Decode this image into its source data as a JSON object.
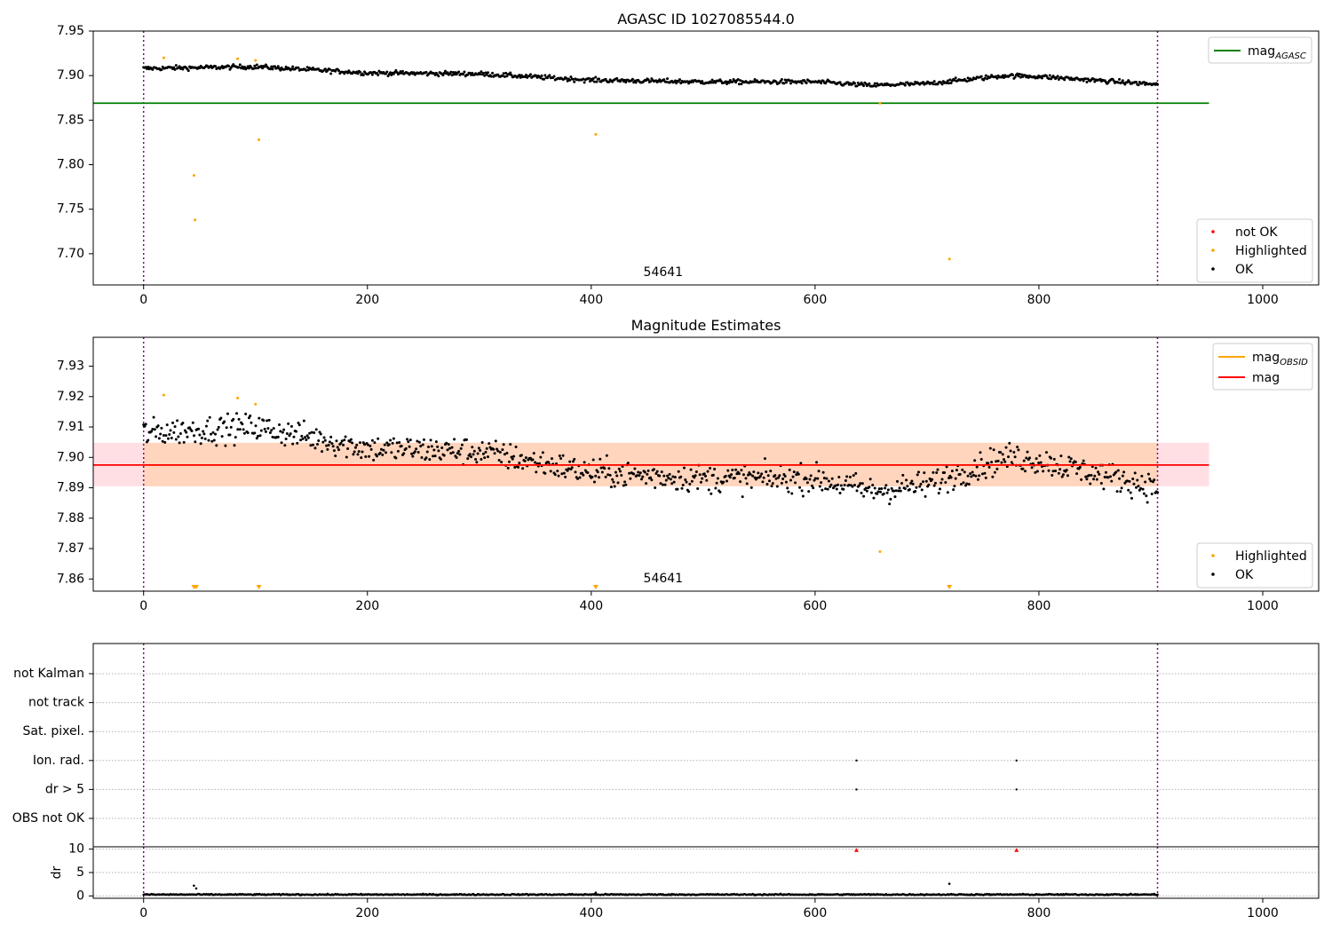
{
  "colors": {
    "ok": "#000000",
    "highlighted": "#ffa500",
    "not_ok": "#ff0000",
    "mag_agasc": "#008000",
    "mag_obsid": "#ffa500",
    "mag": "#ff0000",
    "obsid_line": "#800080",
    "band_obsid": "#ffd9bf",
    "band_mag": "#ffd0d8"
  },
  "chart_data": [
    {
      "type": "scatter",
      "title": "AGASC ID 1027085544.0",
      "xlim": [
        -45,
        1050
      ],
      "ylim": [
        7.665,
        7.95
      ],
      "xticks": [
        0,
        200,
        400,
        600,
        800,
        1000
      ],
      "yticks": [
        "7.70",
        "7.75",
        "7.80",
        "7.85",
        "7.90",
        "7.95"
      ],
      "ytick_values": [
        7.7,
        7.75,
        7.8,
        7.85,
        7.9,
        7.95
      ],
      "obsid_lines_x": [
        0,
        906
      ],
      "obsid_label": "54641",
      "obsid_label_x": 450,
      "hlines": [
        {
          "name": "mag",
          "sub": "AGASC",
          "y": 7.869,
          "x0": -45,
          "x1": 952
        }
      ],
      "legend_lines": [
        {
          "name": "mag",
          "sub": "AGASC",
          "color": "#008000"
        }
      ],
      "legend_points": [
        "not OK",
        "Highlighted",
        "OK"
      ],
      "ok_trend": {
        "n": 905,
        "x0": 0,
        "x1": 906,
        "knots_x": [
          0,
          100,
          200,
          300,
          400,
          500,
          600,
          650,
          700,
          770,
          800,
          906
        ],
        "knots_y": [
          7.908,
          7.91,
          7.903,
          7.902,
          7.895,
          7.893,
          7.893,
          7.889,
          7.891,
          7.9,
          7.899,
          7.89
        ],
        "noise": 0.0025
      },
      "highlighted_points": [
        [
          18,
          7.92
        ],
        [
          84,
          7.919
        ],
        [
          100,
          7.917
        ],
        [
          45,
          7.788
        ],
        [
          46,
          7.738
        ],
        [
          103,
          7.828
        ],
        [
          404,
          7.834
        ],
        [
          658,
          7.869
        ],
        [
          720,
          7.694
        ]
      ],
      "not_ok_points": []
    },
    {
      "type": "scatter",
      "title": "Magnitude Estimates",
      "xlim": [
        -45,
        1050
      ],
      "ylim": [
        7.856,
        7.9395
      ],
      "xticks": [
        0,
        200,
        400,
        600,
        800,
        1000
      ],
      "yticks": [
        "7.86",
        "7.87",
        "7.88",
        "7.89",
        "7.90",
        "7.91",
        "7.92",
        "7.93"
      ],
      "ytick_values": [
        7.86,
        7.87,
        7.88,
        7.89,
        7.9,
        7.91,
        7.92,
        7.93
      ],
      "obsid_lines_x": [
        0,
        906
      ],
      "obsid_label": "54641",
      "obsid_label_x": 450,
      "bands": [
        {
          "y0": 7.8905,
          "y1": 7.9048,
          "x0": -45,
          "x1": 952,
          "color": "#ffdfe4"
        },
        {
          "y0": 7.8905,
          "y1": 7.9048,
          "x0": 0,
          "x1": 906,
          "color": "#ffd5bd"
        }
      ],
      "hlines": [
        {
          "name": "mag",
          "sub": "OBSID",
          "y": 7.8975,
          "x0": 0,
          "x1": 906,
          "color": "#ffa500"
        },
        {
          "name": "mag",
          "sub": "",
          "y": 7.8975,
          "x0": -45,
          "x1": 952,
          "color": "#ff0000"
        }
      ],
      "legend_lines": [
        {
          "name": "mag",
          "sub": "OBSID",
          "color": "#ffa500"
        },
        {
          "name": "mag",
          "sub": "",
          "color": "#ff0000"
        }
      ],
      "legend_points": [
        "Highlighted",
        "OK"
      ],
      "ok_trend": {
        "n": 905,
        "x0": 0,
        "x1": 906,
        "knots_x": [
          0,
          100,
          200,
          300,
          400,
          500,
          600,
          650,
          700,
          770,
          800,
          906
        ],
        "knots_y": [
          7.908,
          7.91,
          7.903,
          7.902,
          7.895,
          7.893,
          7.893,
          7.889,
          7.891,
          7.9,
          7.899,
          7.89
        ],
        "noise": 0.0045
      },
      "highlighted_points": [
        [
          18,
          7.9205
        ],
        [
          84,
          7.9195
        ],
        [
          100,
          7.9175
        ],
        [
          658,
          7.869
        ]
      ],
      "offscale_markers_x": [
        45,
        47,
        103,
        404,
        720
      ],
      "not_ok_points": []
    },
    {
      "type": "scatter",
      "categories": [
        "not Kalman",
        "not track",
        "Sat. pixel.",
        "Ion. rad.",
        "dr > 5",
        "OBS not OK"
      ],
      "flag_points": [
        {
          "category": "Ion. rad.",
          "x": [
            637,
            780
          ]
        },
        {
          "category": "dr > 5",
          "x": [
            637,
            780
          ]
        }
      ],
      "xlim": [
        -45,
        1050
      ],
      "xticks": [
        0,
        200,
        400,
        600,
        800,
        1000
      ],
      "obsid_lines_x": [
        0,
        906
      ]
    },
    {
      "type": "scatter",
      "ylabel": "dr",
      "xlim": [
        -45,
        1050
      ],
      "ylim": [
        -0.5,
        10.5
      ],
      "xticks": [
        0,
        200,
        400,
        600,
        800,
        1000
      ],
      "yticks": [
        "0",
        "5",
        "10"
      ],
      "ytick_values": [
        0,
        5,
        10
      ],
      "obsid_lines_x": [
        0,
        906
      ],
      "ok_baseline": {
        "n": 905,
        "x0": 0,
        "x1": 906,
        "mean": 0.3,
        "noise": 0.12
      },
      "ok_points": [
        [
          45,
          2.2
        ],
        [
          47,
          1.6
        ],
        [
          720,
          2.6
        ],
        [
          404,
          0.7
        ]
      ],
      "not_ok_points": [
        [
          637,
          9.8
        ],
        [
          780,
          9.8
        ]
      ]
    }
  ]
}
